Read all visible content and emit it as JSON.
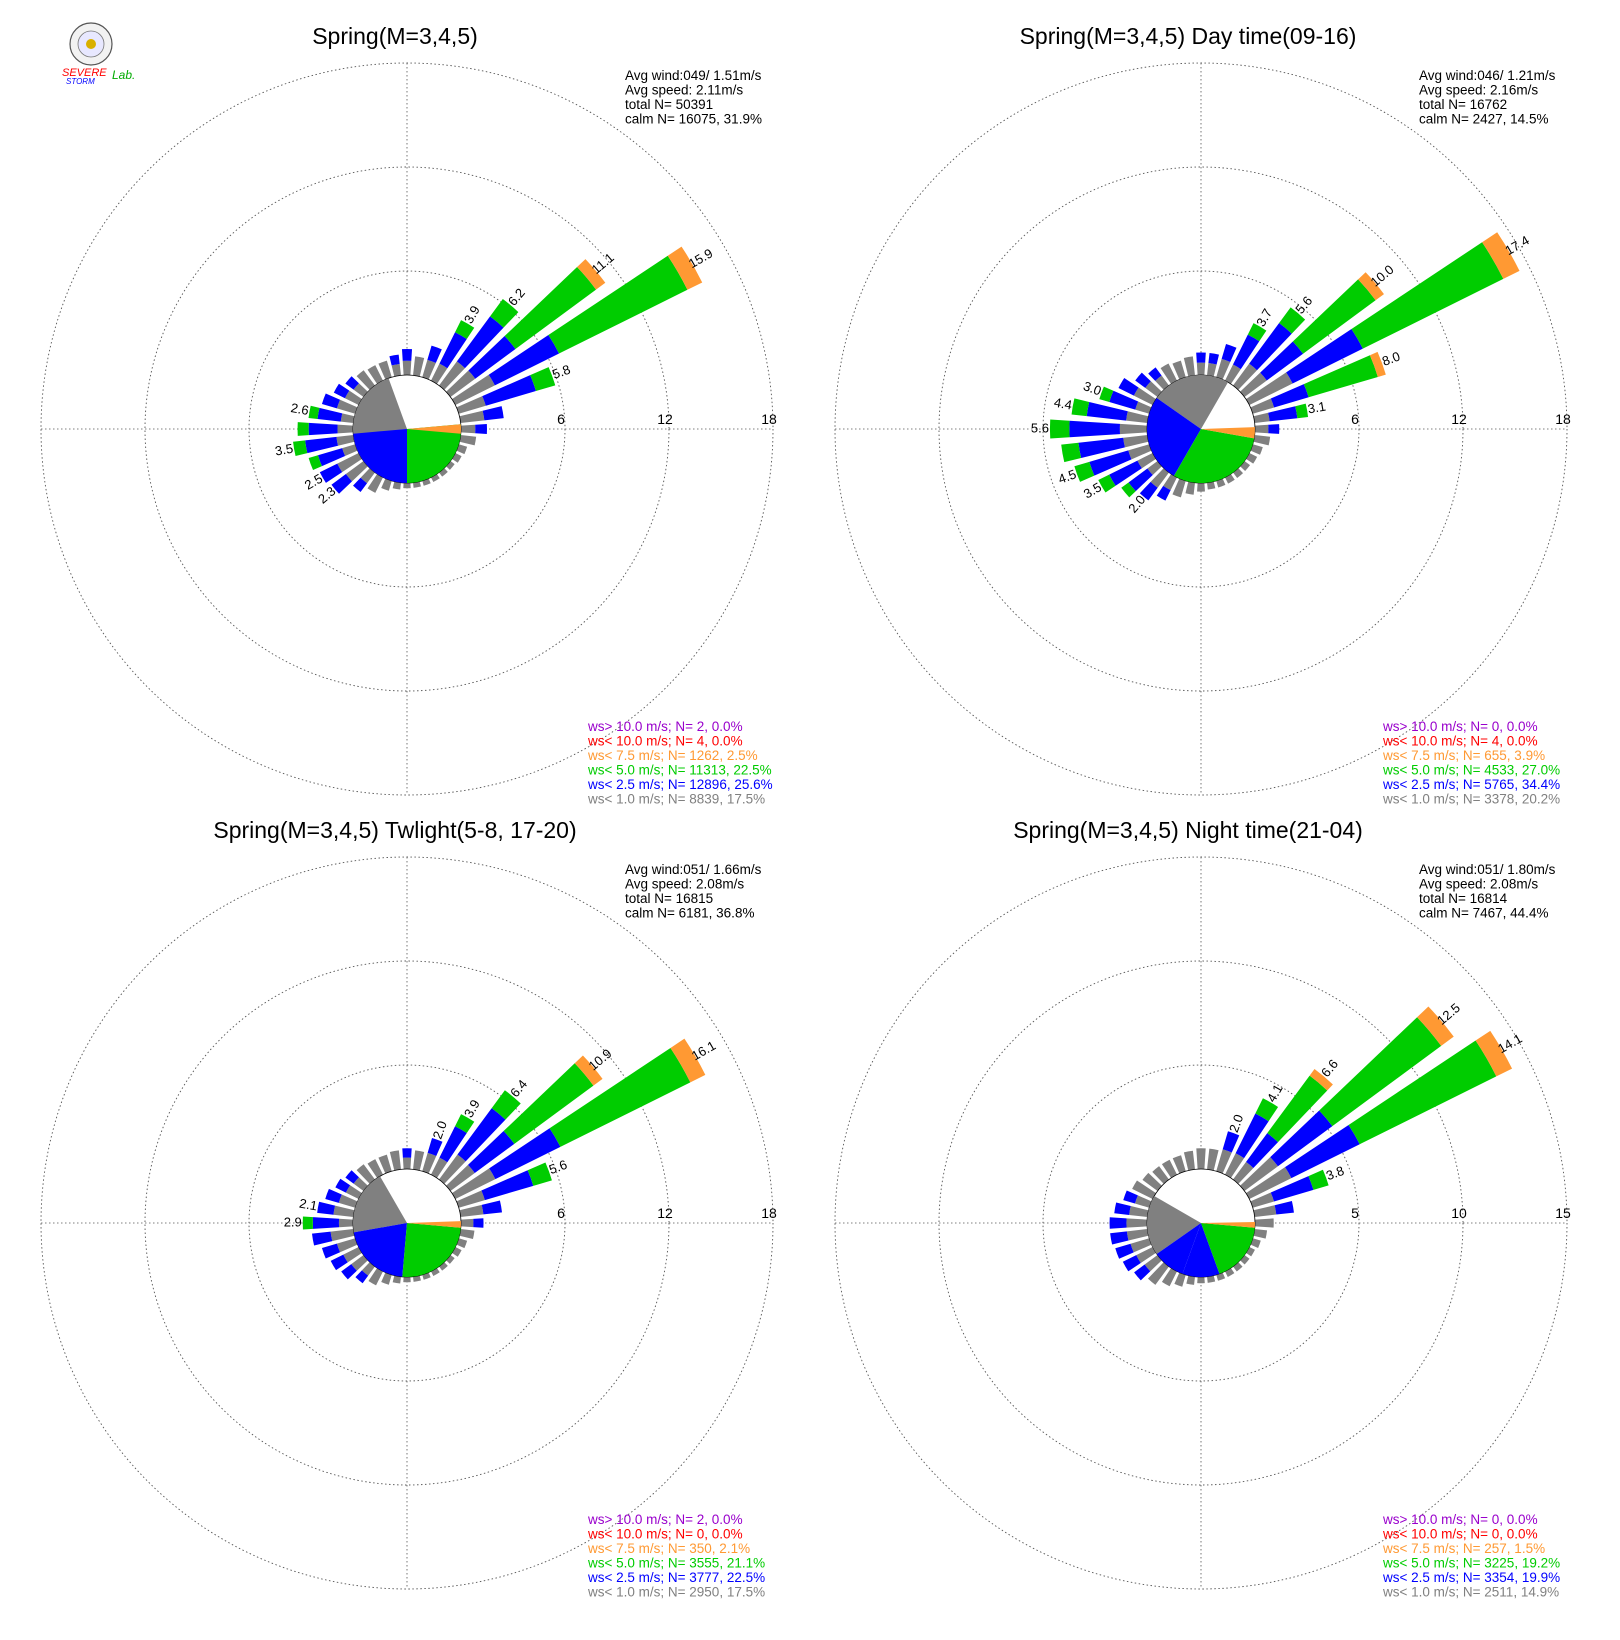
{
  "logo": {
    "text_a": "SEVERE",
    "text_b": "STORM",
    "text_c": "Lab."
  },
  "chart_data": [
    {
      "type": "wind-rose",
      "title": "Spring(M=3,4,5)",
      "stats": [
        "Avg wind:049/ 1.51m/s",
        "Avg speed: 2.11m/s",
        "total N=      50391",
        "calm N=  16075,  31.9%"
      ],
      "ring_labels": [
        "6",
        "12",
        "18"
      ],
      "rmax": 18,
      "hub_pie": [
        {
          "bin": "gray",
          "from": 210,
          "to": 340
        },
        {
          "bin": "blue",
          "from": 180,
          "to": 265
        },
        {
          "bin": "green",
          "from": 85,
          "to": 180
        },
        {
          "bin": "orange",
          "from": 85,
          "to": 95
        }
      ],
      "bars": [
        {
          "dir": 10,
          "v": 1.1
        },
        {
          "dir": 20,
          "v": 1.9
        },
        {
          "dir": 30,
          "v": 3.9,
          "label": "3.9"
        },
        {
          "dir": 40,
          "v": 6.2,
          "label": "6.2"
        },
        {
          "dir": 50,
          "v": 11.1,
          "label": "11.1"
        },
        {
          "dir": 60,
          "v": 15.9,
          "label": "15.9"
        },
        {
          "dir": 70,
          "v": 5.8,
          "label": "5.8"
        },
        {
          "dir": 80,
          "v": 2.5
        },
        {
          "dir": 90,
          "v": 1.5
        },
        {
          "dir": 100,
          "v": 0.9
        },
        {
          "dir": 110,
          "v": 0.5
        },
        {
          "dir": 120,
          "v": 0.4
        },
        {
          "dir": 130,
          "v": 0.3
        },
        {
          "dir": 140,
          "v": 0.3
        },
        {
          "dir": 150,
          "v": 0.3
        },
        {
          "dir": 160,
          "v": 0.3
        },
        {
          "dir": 170,
          "v": 0.3
        },
        {
          "dir": 180,
          "v": 0.3
        },
        {
          "dir": 190,
          "v": 0.4
        },
        {
          "dir": 200,
          "v": 0.6
        },
        {
          "dir": 210,
          "v": 1.0
        },
        {
          "dir": 220,
          "v": 1.4
        },
        {
          "dir": 230,
          "v": 2.3,
          "label": "2.3"
        },
        {
          "dir": 240,
          "v": 2.5,
          "label": "2.5"
        },
        {
          "dir": 250,
          "v": 2.8
        },
        {
          "dir": 260,
          "v": 3.5,
          "label": "3.5"
        },
        {
          "dir": 270,
          "v": 3.2
        },
        {
          "dir": 280,
          "v": 2.6,
          "label": "2.6"
        },
        {
          "dir": 290,
          "v": 2.0
        },
        {
          "dir": 300,
          "v": 1.6
        },
        {
          "dir": 310,
          "v": 1.3
        },
        {
          "dir": 320,
          "v": 1.1
        },
        {
          "dir": 330,
          "v": 1.0
        },
        {
          "dir": 340,
          "v": 1.0
        },
        {
          "dir": 350,
          "v": 1.2
        },
        {
          "dir": 360,
          "v": 1.5
        }
      ],
      "legend": [
        {
          "bin": "purple",
          "text": "ws> 10.0 m/s; N=      2,  0.0%"
        },
        {
          "bin": "red",
          "text": "ws< 10.0 m/s; N=      4,  0.0%"
        },
        {
          "bin": "orange",
          "text": "ws<  7.5 m/s; N=  1262,  2.5%"
        },
        {
          "bin": "green",
          "text": "ws<  5.0 m/s; N= 11313, 22.5%"
        },
        {
          "bin": "blue",
          "text": "ws<  2.5 m/s; N= 12896, 25.6%"
        },
        {
          "bin": "gray",
          "text": "ws<  1.0 m/s; N=  8839, 17.5%"
        }
      ]
    },
    {
      "type": "wind-rose",
      "title": "Spring(M=3,4,5) Day time(09-16)",
      "stats": [
        "Avg wind:046/ 1.21m/s",
        "Avg speed: 2.16m/s",
        "total N=      16762",
        "calm N=  2427,  14.5%"
      ],
      "ring_labels": [
        "6",
        "12",
        "18"
      ],
      "rmax": 18,
      "hub_pie": [
        {
          "bin": "gray",
          "from": 305,
          "to": 30
        },
        {
          "bin": "blue",
          "from": 210,
          "to": 305
        },
        {
          "bin": "green",
          "from": 100,
          "to": 210
        },
        {
          "bin": "orange",
          "from": 88,
          "to": 100
        }
      ],
      "bars": [
        {
          "dir": 10,
          "v": 1.3
        },
        {
          "dir": 20,
          "v": 2.0
        },
        {
          "dir": 30,
          "v": 3.7,
          "label": "3.7"
        },
        {
          "dir": 40,
          "v": 5.6,
          "label": "5.6"
        },
        {
          "dir": 50,
          "v": 10.0,
          "label": "10.0"
        },
        {
          "dir": 60,
          "v": 17.4,
          "label": "17.4"
        },
        {
          "dir": 70,
          "v": 8.0,
          "label": "8.0"
        },
        {
          "dir": 80,
          "v": 3.1,
          "label": "3.1"
        },
        {
          "dir": 90,
          "v": 1.4
        },
        {
          "dir": 100,
          "v": 0.9
        },
        {
          "dir": 110,
          "v": 0.6
        },
        {
          "dir": 120,
          "v": 0.5
        },
        {
          "dir": 130,
          "v": 0.4
        },
        {
          "dir": 140,
          "v": 0.4
        },
        {
          "dir": 150,
          "v": 0.4
        },
        {
          "dir": 160,
          "v": 0.4
        },
        {
          "dir": 170,
          "v": 0.4
        },
        {
          "dir": 180,
          "v": 0.5
        },
        {
          "dir": 190,
          "v": 0.7
        },
        {
          "dir": 200,
          "v": 1.0
        },
        {
          "dir": 210,
          "v": 1.5
        },
        {
          "dir": 220,
          "v": 2.0,
          "label": "2.0"
        },
        {
          "dir": 230,
          "v": 2.6
        },
        {
          "dir": 240,
          "v": 3.5,
          "label": "3.5"
        },
        {
          "dir": 250,
          "v": 4.5,
          "label": "4.5"
        },
        {
          "dir": 260,
          "v": 5.0
        },
        {
          "dir": 270,
          "v": 5.6,
          "label": "5.6"
        },
        {
          "dir": 280,
          "v": 4.4,
          "label": "4.4"
        },
        {
          "dir": 290,
          "v": 3.0,
          "label": "3.0"
        },
        {
          "dir": 300,
          "v": 2.2
        },
        {
          "dir": 310,
          "v": 1.6
        },
        {
          "dir": 320,
          "v": 1.3
        },
        {
          "dir": 330,
          "v": 1.1
        },
        {
          "dir": 340,
          "v": 1.0
        },
        {
          "dir": 350,
          "v": 1.1
        },
        {
          "dir": 360,
          "v": 1.3
        }
      ],
      "legend": [
        {
          "bin": "purple",
          "text": "ws> 10.0 m/s; N=      0,  0.0%"
        },
        {
          "bin": "red",
          "text": "ws< 10.0 m/s; N=      4,  0.0%"
        },
        {
          "bin": "orange",
          "text": "ws<  7.5 m/s; N=    655,  3.9%"
        },
        {
          "bin": "green",
          "text": "ws<  5.0 m/s; N=  4533, 27.0%"
        },
        {
          "bin": "blue",
          "text": "ws<  2.5 m/s; N=  5765, 34.4%"
        },
        {
          "bin": "gray",
          "text": "ws<  1.0 m/s; N=  3378, 20.2%"
        }
      ]
    },
    {
      "type": "wind-rose",
      "title": "Spring(M=3,4,5) Twlight(5-8, 17-20)",
      "stats": [
        "Avg wind:051/ 1.66m/s",
        "Avg speed: 2.08m/s",
        "total N=      16815",
        "calm N=  6181,  36.8%"
      ],
      "ring_labels": [
        "6",
        "12",
        "18"
      ],
      "rmax": 18,
      "hub_pie": [
        {
          "bin": "gray",
          "from": 260,
          "to": 330
        },
        {
          "bin": "blue",
          "from": 185,
          "to": 260
        },
        {
          "bin": "green",
          "from": 95,
          "to": 185
        },
        {
          "bin": "orange",
          "from": 88,
          "to": 95
        }
      ],
      "bars": [
        {
          "dir": 10,
          "v": 1.1
        },
        {
          "dir": 20,
          "v": 2.0,
          "label": "2.0"
        },
        {
          "dir": 30,
          "v": 3.9,
          "label": "3.9"
        },
        {
          "dir": 40,
          "v": 6.4,
          "label": "6.4"
        },
        {
          "dir": 50,
          "v": 10.9,
          "label": "10.9"
        },
        {
          "dir": 60,
          "v": 16.1,
          "label": "16.1"
        },
        {
          "dir": 70,
          "v": 5.6,
          "label": "5.6"
        },
        {
          "dir": 80,
          "v": 2.4
        },
        {
          "dir": 90,
          "v": 1.3
        },
        {
          "dir": 100,
          "v": 0.8
        },
        {
          "dir": 110,
          "v": 0.5
        },
        {
          "dir": 120,
          "v": 0.4
        },
        {
          "dir": 130,
          "v": 0.3
        },
        {
          "dir": 140,
          "v": 0.3
        },
        {
          "dir": 150,
          "v": 0.3
        },
        {
          "dir": 160,
          "v": 0.3
        },
        {
          "dir": 170,
          "v": 0.3
        },
        {
          "dir": 180,
          "v": 0.3
        },
        {
          "dir": 190,
          "v": 0.4
        },
        {
          "dir": 200,
          "v": 0.6
        },
        {
          "dir": 210,
          "v": 0.9
        },
        {
          "dir": 220,
          "v": 1.2
        },
        {
          "dir": 230,
          "v": 1.6
        },
        {
          "dir": 240,
          "v": 1.8
        },
        {
          "dir": 250,
          "v": 2.0
        },
        {
          "dir": 260,
          "v": 2.4
        },
        {
          "dir": 270,
          "v": 2.9,
          "label": "2.9"
        },
        {
          "dir": 280,
          "v": 2.1,
          "label": "2.1"
        },
        {
          "dir": 290,
          "v": 1.8
        },
        {
          "dir": 300,
          "v": 1.5
        },
        {
          "dir": 310,
          "v": 1.3
        },
        {
          "dir": 320,
          "v": 1.1
        },
        {
          "dir": 330,
          "v": 1.0
        },
        {
          "dir": 340,
          "v": 1.0
        },
        {
          "dir": 350,
          "v": 1.1
        },
        {
          "dir": 360,
          "v": 1.2
        }
      ],
      "legend": [
        {
          "bin": "purple",
          "text": "ws> 10.0 m/s; N=      2,  0.0%"
        },
        {
          "bin": "red",
          "text": "ws< 10.0 m/s; N=      0,  0.0%"
        },
        {
          "bin": "orange",
          "text": "ws<  7.5 m/s; N=    350,  2.1%"
        },
        {
          "bin": "green",
          "text": "ws<  5.0 m/s; N=  3555, 21.1%"
        },
        {
          "bin": "blue",
          "text": "ws<  2.5 m/s; N=  3777, 22.5%"
        },
        {
          "bin": "gray",
          "text": "ws<  1.0 m/s; N=  2950, 17.5%"
        }
      ]
    },
    {
      "type": "wind-rose",
      "title": "Spring(M=3,4,5) Night time(21-04)",
      "stats": [
        "Avg wind:051/ 1.80m/s",
        "Avg speed: 2.08m/s",
        "total N=      16814",
        "calm N=  7467,  44.4%"
      ],
      "ring_labels": [
        "5",
        "10",
        "15"
      ],
      "rmax": 15,
      "hub_pie": [
        {
          "bin": "gray",
          "from": 235,
          "to": 300
        },
        {
          "bin": "blue",
          "from": 200,
          "to": 235
        },
        {
          "bin": "blue",
          "from": 160,
          "to": 200
        },
        {
          "bin": "green",
          "from": 95,
          "to": 160
        },
        {
          "bin": "orange",
          "from": 89,
          "to": 95
        }
      ],
      "bars": [
        {
          "dir": 10,
          "v": 1.0
        },
        {
          "dir": 20,
          "v": 2.0,
          "label": "2.0"
        },
        {
          "dir": 30,
          "v": 4.1,
          "label": "4.1"
        },
        {
          "dir": 40,
          "v": 6.6,
          "label": "6.6"
        },
        {
          "dir": 50,
          "v": 12.5,
          "label": "12.5"
        },
        {
          "dir": 60,
          "v": 14.1,
          "label": "14.1"
        },
        {
          "dir": 70,
          "v": 3.8,
          "label": "3.8"
        },
        {
          "dir": 80,
          "v": 1.9
        },
        {
          "dir": 90,
          "v": 0.9
        },
        {
          "dir": 100,
          "v": 0.6
        },
        {
          "dir": 110,
          "v": 0.4
        },
        {
          "dir": 120,
          "v": 0.3
        },
        {
          "dir": 130,
          "v": 0.3
        },
        {
          "dir": 140,
          "v": 0.3
        },
        {
          "dir": 150,
          "v": 0.3
        },
        {
          "dir": 160,
          "v": 0.3
        },
        {
          "dir": 170,
          "v": 0.3
        },
        {
          "dir": 180,
          "v": 0.3
        },
        {
          "dir": 190,
          "v": 0.4
        },
        {
          "dir": 200,
          "v": 0.6
        },
        {
          "dir": 210,
          "v": 0.8
        },
        {
          "dir": 220,
          "v": 1.1
        },
        {
          "dir": 230,
          "v": 1.4
        },
        {
          "dir": 240,
          "v": 1.6
        },
        {
          "dir": 250,
          "v": 1.7
        },
        {
          "dir": 260,
          "v": 1.8
        },
        {
          "dir": 270,
          "v": 1.8
        },
        {
          "dir": 280,
          "v": 1.6
        },
        {
          "dir": 290,
          "v": 1.3
        },
        {
          "dir": 300,
          "v": 1.1
        },
        {
          "dir": 310,
          "v": 0.9
        },
        {
          "dir": 320,
          "v": 0.8
        },
        {
          "dir": 330,
          "v": 0.8
        },
        {
          "dir": 340,
          "v": 0.8
        },
        {
          "dir": 350,
          "v": 0.9
        },
        {
          "dir": 360,
          "v": 1.0
        }
      ],
      "legend": [
        {
          "bin": "purple",
          "text": "ws> 10.0 m/s; N=      0,  0.0%"
        },
        {
          "bin": "red",
          "text": "ws< 10.0 m/s; N=      0,  0.0%"
        },
        {
          "bin": "orange",
          "text": "ws<  7.5 m/s; N=    257,  1.5%"
        },
        {
          "bin": "green",
          "text": "ws<  5.0 m/s; N=  3225, 19.2%"
        },
        {
          "bin": "blue",
          "text": "ws<  2.5 m/s; N=  3354, 19.9%"
        },
        {
          "bin": "gray",
          "text": "ws<  1.0 m/s; N=  2511, 14.9%"
        }
      ]
    }
  ],
  "colors": {
    "purple": "#9900cc",
    "red": "#ff0000",
    "orange": "#ff9933",
    "green": "#00cc00",
    "blue": "#0000ff",
    "gray": "#808080"
  }
}
